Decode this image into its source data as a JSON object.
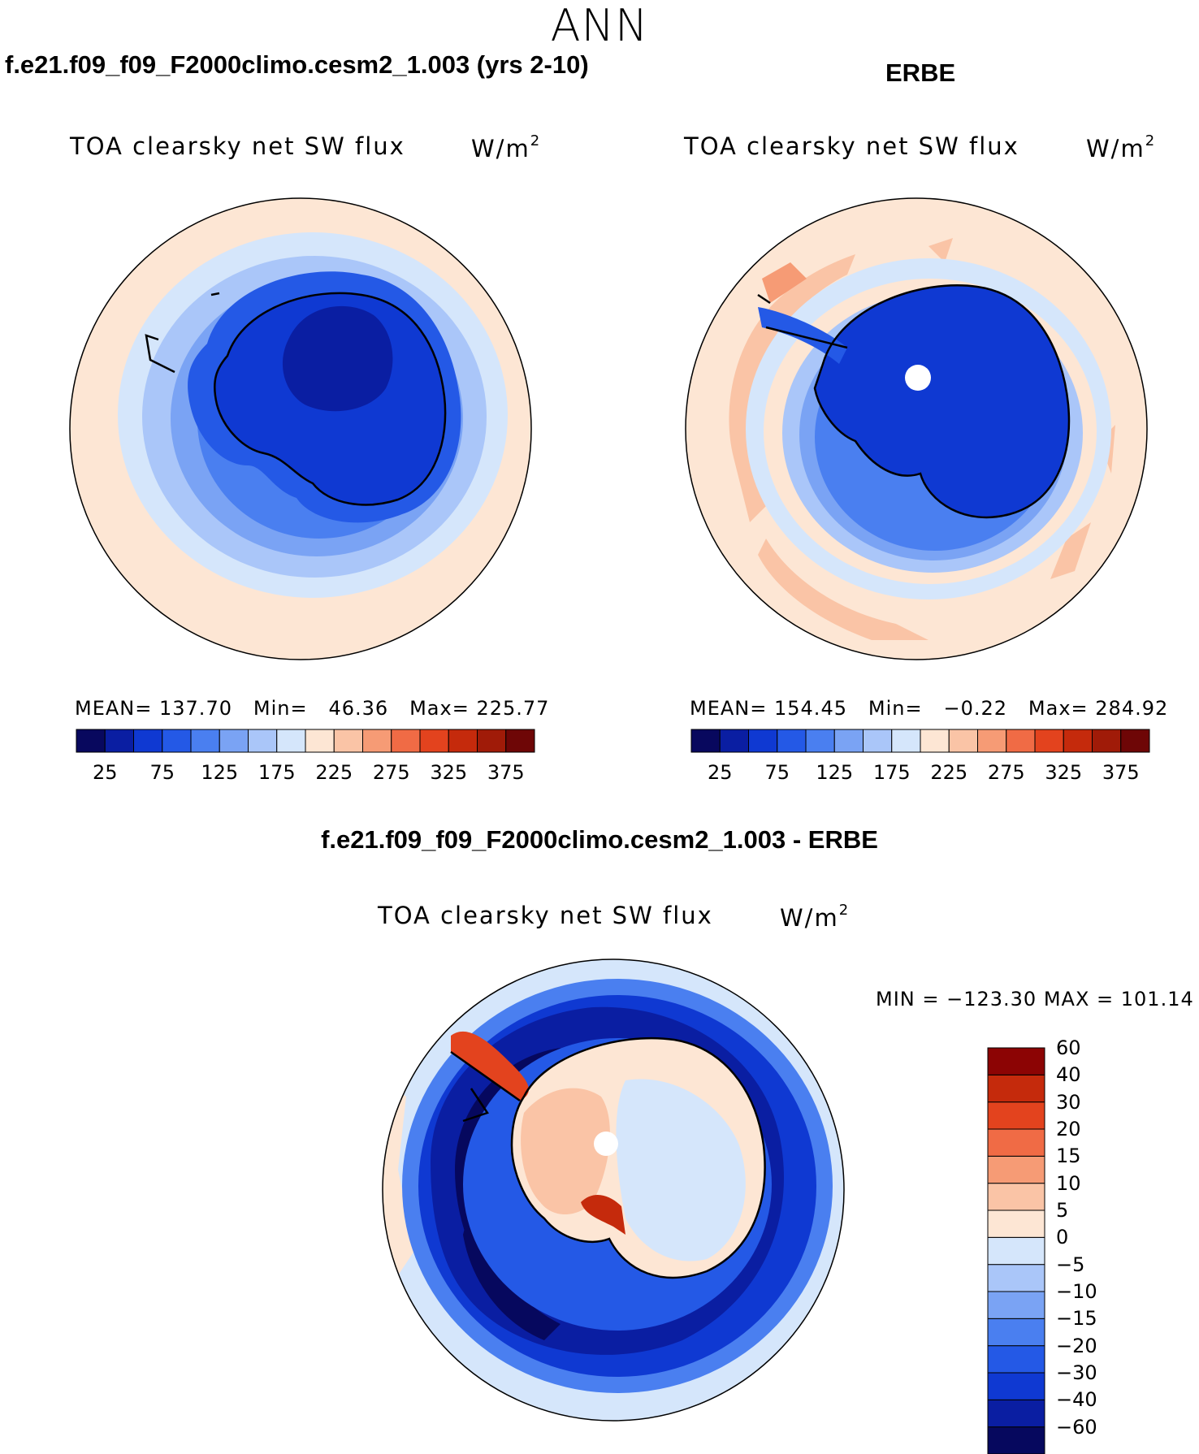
{
  "figure": {
    "title": "ANN",
    "units_base": "W/m",
    "units_exp": "2",
    "variable": "TOA clearsky net SW flux"
  },
  "panels": {
    "model": {
      "case_title": "f.e21.f09_f09_F2000climo.cesm2_1.003 (yrs 2-10)",
      "variable": "TOA clearsky net SW flux",
      "stats": {
        "mean_label": "MEAN=",
        "mean": "137.70",
        "min_label": "Min=",
        "min": "46.36",
        "max_label": "Max=",
        "max": "225.77"
      }
    },
    "obs": {
      "case_title": "ERBE",
      "variable": "TOA clearsky net SW flux",
      "stats": {
        "mean_label": "MEAN=",
        "mean": "154.45",
        "min_label": "Min=",
        "min": "−0.22",
        "max_label": "Max=",
        "max": "284.92"
      }
    },
    "diff": {
      "case_title": "f.e21.f09_f09_F2000climo.cesm2_1.003 - ERBE",
      "variable": "TOA clearsky net SW flux",
      "minmax_text": "MIN = −123.30 MAX = 101.14"
    }
  },
  "colorbars": {
    "abs_colors": [
      "#08085e",
      "#0a1ea2",
      "#0f39d2",
      "#2459e6",
      "#4a7ff0",
      "#7aa3f4",
      "#aac6f9",
      "#d5e6fb",
      "#fde6d4",
      "#fac4a6",
      "#f69b75",
      "#f06b45",
      "#e3431e",
      "#c52a0c",
      "#a01b08",
      "#6e0606"
    ],
    "abs_ticks": [
      "25",
      "75",
      "125",
      "175",
      "225",
      "275",
      "325",
      "375"
    ],
    "diff_colors": [
      "#06085e",
      "#0a1ea2",
      "#0f39d2",
      "#2459e6",
      "#4a7ff0",
      "#7aa3f4",
      "#aac6f9",
      "#d5e6fb",
      "#fde6d4",
      "#fac4a6",
      "#f69b75",
      "#f06b45",
      "#e3431e",
      "#c52a0c",
      "#8c0404"
    ],
    "diff_ticks": [
      "−60",
      "−40",
      "−30",
      "−20",
      "−15",
      "−10",
      "−5",
      "0",
      "5",
      "10",
      "15",
      "20",
      "30",
      "40",
      "60"
    ]
  },
  "chart_data": [
    {
      "type": "heatmap",
      "title": "TOA clearsky net SW flux",
      "subtitle": "f.e21.f09_f09_F2000climo.cesm2_1.003 (yrs 2-10)",
      "projection": "south-polar-stereographic",
      "units": "W/m2",
      "mean": 137.7,
      "min": 46.36,
      "max": 225.77,
      "contour_levels": [
        25,
        50,
        75,
        100,
        125,
        150,
        175,
        200,
        225,
        250,
        275,
        300,
        325,
        350,
        375
      ]
    },
    {
      "type": "heatmap",
      "title": "TOA clearsky net SW flux",
      "subtitle": "ERBE",
      "projection": "south-polar-stereographic",
      "units": "W/m2",
      "mean": 154.45,
      "min": -0.22,
      "max": 284.92,
      "contour_levels": [
        25,
        50,
        75,
        100,
        125,
        150,
        175,
        200,
        225,
        250,
        275,
        300,
        325,
        350,
        375
      ]
    },
    {
      "type": "heatmap",
      "title": "TOA clearsky net SW flux",
      "subtitle": "f.e21.f09_f09_F2000climo.cesm2_1.003 - ERBE",
      "projection": "south-polar-stereographic",
      "units": "W/m2",
      "min": -123.3,
      "max": 101.14,
      "contour_levels": [
        -60,
        -40,
        -30,
        -20,
        -15,
        -10,
        -5,
        0,
        5,
        10,
        15,
        20,
        30,
        40,
        60
      ]
    }
  ]
}
